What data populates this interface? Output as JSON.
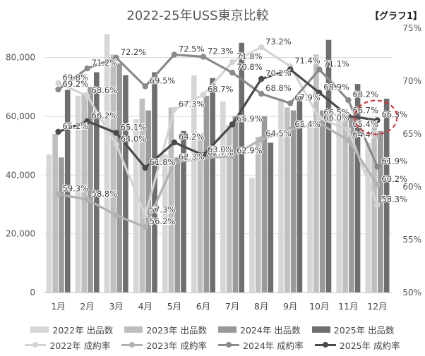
{
  "title": "2022-25年USS東京比較",
  "tag": "【グラフ1】",
  "chart_data": {
    "type": "bar",
    "categories": [
      "1月",
      "2月",
      "3月",
      "4月",
      "5月",
      "6月",
      "7月",
      "8月",
      "9月",
      "10月",
      "11月",
      "12月"
    ],
    "bar_series": [
      {
        "name": "2022年 出品数",
        "color": "#d6d6d6",
        "values": [
          47000,
          67000,
          88000,
          59000,
          47000,
          74000,
          65000,
          39000,
          66000,
          58000,
          63000,
          51000
        ]
      },
      {
        "name": "2023年 出品数",
        "color": "#bfbfbf",
        "values": [
          54000,
          68000,
          81000,
          66000,
          63000,
          54000,
          57000,
          53000,
          63000,
          81000,
          62000,
          58000
        ]
      },
      {
        "name": "2024年 出品数",
        "color": "#9a9a9a",
        "values": [
          46000,
          70000,
          78000,
          62000,
          46000,
          67000,
          60000,
          60000,
          62000,
          62000,
          60000,
          55000
        ]
      },
      {
        "name": "2025年 出品数",
        "color": "#6e6e6e",
        "values": [
          69000,
          75000,
          74000,
          75000,
          55000,
          73000,
          85000,
          51000,
          67000,
          86000,
          71000,
          66000
        ]
      }
    ],
    "rate_series": [
      {
        "name": "2022年 成約率",
        "color": "#d4d4d4",
        "values": [
          69.8,
          68.6,
          64.0,
          57.3,
          67.3,
          68.7,
          71.8,
          73.2,
          71.4,
          66.5,
          65.4,
          58.3
        ],
        "labels": [
          "69.8%",
          "68.6%",
          "64.0%",
          "57.3%",
          "67.3%",
          "68.7%",
          "71.8%",
          "73.2%",
          "71.4%",
          "66.5%",
          "65.4%",
          "58.3%"
        ]
      },
      {
        "name": "2023年 成約率",
        "color": "#b2b2b2",
        "values": [
          59.3,
          58.8,
          57.3,
          56.2,
          62.3,
          62.7,
          62.9,
          64.5,
          65.4,
          66.0,
          64.4,
          60.2
        ],
        "labels": [
          "59.3%",
          "58.8%",
          "",
          "56.2%",
          "62.3%",
          "62.7%",
          "62.9%",
          "64.5%",
          "65.4%",
          "66.0%",
          "64.4%",
          "60.2%"
        ]
      },
      {
        "name": "2024年 成約率",
        "color": "#8a8a8a",
        "values": [
          69.2,
          71.2,
          72.2,
          69.5,
          72.5,
          72.3,
          70.8,
          68.8,
          67.9,
          71.1,
          68.2,
          61.9
        ],
        "labels": [
          "69.2%",
          "71.2%",
          "72.2%",
          "69.5%",
          "72.5%",
          "72.3%",
          "70.8%",
          "68.8%",
          "67.9%",
          "71.1%",
          "68.2%",
          "61.9%"
        ]
      },
      {
        "name": "2025年 成約率",
        "color": "#4a4a4a",
        "values": [
          65.2,
          66.2,
          65.1,
          61.8,
          64.2,
          63.0,
          65.9,
          70.2,
          71.1,
          68.9,
          66.7,
          66.3
        ],
        "labels": [
          "65.2%",
          "66.2%",
          "65.1%",
          "61.8%",
          "64.2%",
          "63.0%",
          "65.9%",
          "70.2%",
          "",
          "68.9%",
          "66.7%",
          "66.3%"
        ]
      }
    ],
    "y_left": {
      "min": 0,
      "max": 90000,
      "ticks": [
        0,
        20000,
        40000,
        60000,
        80000
      ],
      "tick_labels": [
        "0",
        "20,000",
        "40,000",
        "60,000",
        "80,000"
      ]
    },
    "y_right": {
      "min": 50,
      "max": 75,
      "ticks": [
        50,
        55,
        60,
        65,
        70,
        75
      ],
      "tick_labels": [
        "50%",
        "55%",
        "60%",
        "65%",
        "70%",
        "75%"
      ]
    },
    "grid": true,
    "legend_position": "bottom",
    "highlight": {
      "category": "12月",
      "series": "2025年 成約率",
      "color": "#d32f2f",
      "style": "dashed-circle"
    }
  }
}
